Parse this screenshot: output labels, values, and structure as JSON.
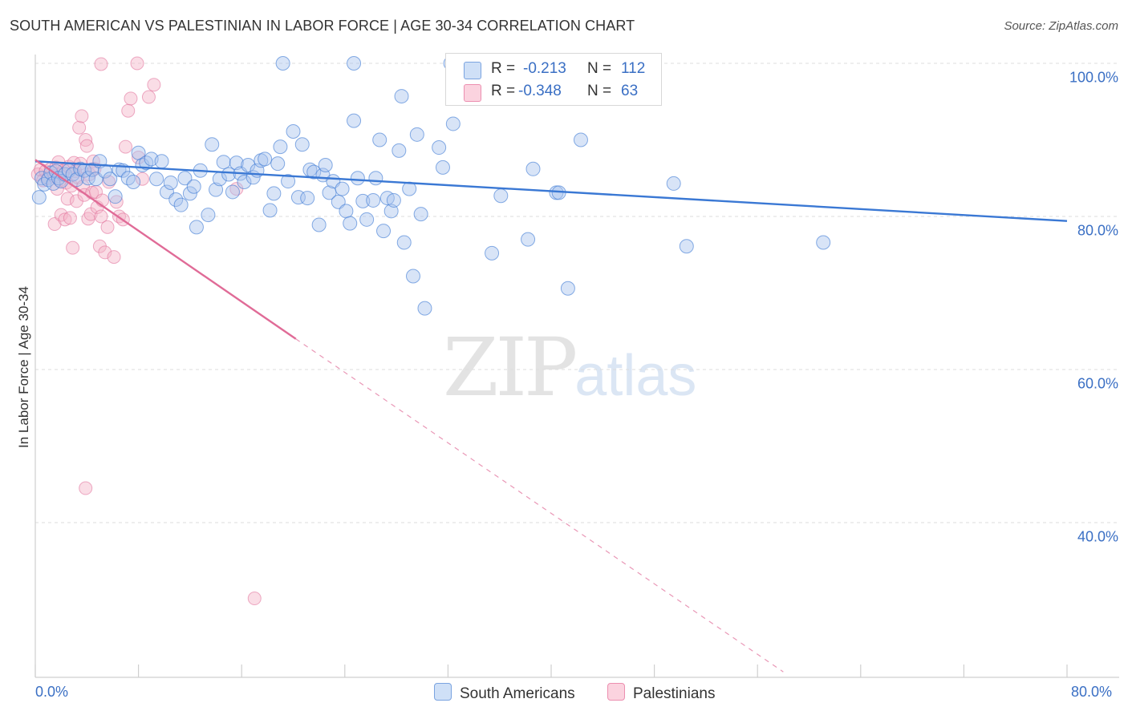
{
  "title": "SOUTH AMERICAN VS PALESTINIAN IN LABOR FORCE | AGE 30-34 CORRELATION CHART",
  "source": "Source: ZipAtlas.com",
  "watermark": {
    "zip": "ZIP",
    "atlas": "atlas"
  },
  "legend": {
    "rows": [
      {
        "r_label": "R =",
        "r_value": "-0.213",
        "n_label": "N =",
        "n_value": "112",
        "color": "#a9c4ee"
      },
      {
        "r_label": "R =",
        "r_value": "-0.348",
        "n_label": "N =",
        "n_value": "63",
        "color": "#f5b3c8"
      }
    ]
  },
  "bottom_legend": [
    "South Americans",
    "Palestinians"
  ],
  "colors": {
    "blue": "#3a78d4",
    "blue_fill": "#a9c4ee",
    "pink": "#e06b97",
    "pink_fill": "#f5b3c8",
    "tick_text": "#3a6fc4"
  },
  "chart_data": {
    "type": "scatter",
    "xlabel": "",
    "ylabel": "In Labor Force | Age 30-34",
    "x_tick_labels": [
      "0.0%",
      "80.0%"
    ],
    "y_tick_labels": [
      "100.0%",
      "80.0%",
      "60.0%",
      "40.0%"
    ],
    "xlim": [
      0,
      80
    ],
    "ylim": [
      20,
      102
    ],
    "grid": true,
    "series": [
      {
        "name": "South Americans",
        "trend": {
          "x": [
            0,
            80
          ],
          "y": [
            87.2,
            79.4
          ]
        },
        "points": [
          [
            0.5,
            85.0
          ],
          [
            0.7,
            84.2
          ],
          [
            1.0,
            84.8
          ],
          [
            1.2,
            85.7
          ],
          [
            1.4,
            84.3
          ],
          [
            1.6,
            85.9
          ],
          [
            1.8,
            85.0
          ],
          [
            2.0,
            84.6
          ],
          [
            2.3,
            85.5
          ],
          [
            2.6,
            86.0
          ],
          [
            2.9,
            85.5
          ],
          [
            3.2,
            84.8
          ],
          [
            3.5,
            86.2
          ],
          [
            3.8,
            86.0
          ],
          [
            4.1,
            85.0
          ],
          [
            4.4,
            86.1
          ],
          [
            4.7,
            84.9
          ],
          [
            5.0,
            87.2
          ],
          [
            5.4,
            85.9
          ],
          [
            5.8,
            84.9
          ],
          [
            6.2,
            82.6
          ],
          [
            6.5,
            86.1
          ],
          [
            6.8,
            86.0
          ],
          [
            7.2,
            85.0
          ],
          [
            7.6,
            84.5
          ],
          [
            8.0,
            88.3
          ],
          [
            8.3,
            86.7
          ],
          [
            8.6,
            87.0
          ],
          [
            9.0,
            87.5
          ],
          [
            9.4,
            84.9
          ],
          [
            9.8,
            87.2
          ],
          [
            10.2,
            83.2
          ],
          [
            10.5,
            84.4
          ],
          [
            10.9,
            82.2
          ],
          [
            11.3,
            81.5
          ],
          [
            11.6,
            85.0
          ],
          [
            12.0,
            83.0
          ],
          [
            12.3,
            83.9
          ],
          [
            12.5,
            78.6
          ],
          [
            12.8,
            86.0
          ],
          [
            13.4,
            80.2
          ],
          [
            13.7,
            89.4
          ],
          [
            14.0,
            83.5
          ],
          [
            14.3,
            84.9
          ],
          [
            14.6,
            87.1
          ],
          [
            15.0,
            85.5
          ],
          [
            15.3,
            83.2
          ],
          [
            15.6,
            87.0
          ],
          [
            15.9,
            85.6
          ],
          [
            16.2,
            84.5
          ],
          [
            16.5,
            86.7
          ],
          [
            16.9,
            85.1
          ],
          [
            17.2,
            86.0
          ],
          [
            17.5,
            87.3
          ],
          [
            17.8,
            87.5
          ],
          [
            18.2,
            80.8
          ],
          [
            18.5,
            83.0
          ],
          [
            18.8,
            86.9
          ],
          [
            19.0,
            89.1
          ],
          [
            19.6,
            84.6
          ],
          [
            20.0,
            91.1
          ],
          [
            20.4,
            82.5
          ],
          [
            20.7,
            89.4
          ],
          [
            21.1,
            82.4
          ],
          [
            21.3,
            86.1
          ],
          [
            21.6,
            85.8
          ],
          [
            22.0,
            78.9
          ],
          [
            22.3,
            85.4
          ],
          [
            22.5,
            86.7
          ],
          [
            22.8,
            83.1
          ],
          [
            23.1,
            84.6
          ],
          [
            23.5,
            81.9
          ],
          [
            23.8,
            83.6
          ],
          [
            24.1,
            80.7
          ],
          [
            24.4,
            79.1
          ],
          [
            24.7,
            92.5
          ],
          [
            25.0,
            85.0
          ],
          [
            25.4,
            82.0
          ],
          [
            25.7,
            79.6
          ],
          [
            26.2,
            82.1
          ],
          [
            26.4,
            85.0
          ],
          [
            26.7,
            90.0
          ],
          [
            27.0,
            78.1
          ],
          [
            27.3,
            82.4
          ],
          [
            27.6,
            80.7
          ],
          [
            27.8,
            82.1
          ],
          [
            28.2,
            88.6
          ],
          [
            28.4,
            95.7
          ],
          [
            28.6,
            76.6
          ],
          [
            29.0,
            83.6
          ],
          [
            29.3,
            72.2
          ],
          [
            29.6,
            90.7
          ],
          [
            29.9,
            80.3
          ],
          [
            30.2,
            68.0
          ],
          [
            31.3,
            89.0
          ],
          [
            31.6,
            86.4
          ],
          [
            32.4,
            92.1
          ],
          [
            35.4,
            75.2
          ],
          [
            36.1,
            82.7
          ],
          [
            38.2,
            77.0
          ],
          [
            38.6,
            86.2
          ],
          [
            40.4,
            83.1
          ],
          [
            40.6,
            83.1
          ],
          [
            41.3,
            70.6
          ],
          [
            42.3,
            90.0
          ],
          [
            49.5,
            84.3
          ],
          [
            50.5,
            76.1
          ],
          [
            61.1,
            76.6
          ],
          [
            19.2,
            100.0
          ],
          [
            24.7,
            100.0
          ],
          [
            32.2,
            100.0
          ],
          [
            0.3,
            82.5
          ]
        ]
      },
      {
        "name": "Palestinians",
        "trend": {
          "x": [
            0,
            20.2
          ],
          "y": [
            87.4,
            64.0
          ]
        },
        "trend_dashed": {
          "x": [
            20.2,
            58.0
          ],
          "y": [
            64.0,
            20.5
          ]
        },
        "points": [
          [
            0.2,
            85.5
          ],
          [
            0.4,
            86.1
          ],
          [
            0.6,
            84.7
          ],
          [
            0.8,
            85.9
          ],
          [
            1.0,
            85.0
          ],
          [
            1.2,
            86.2
          ],
          [
            1.4,
            85.3
          ],
          [
            1.5,
            79.0
          ],
          [
            1.6,
            86.4
          ],
          [
            1.7,
            83.6
          ],
          [
            1.8,
            87.1
          ],
          [
            1.9,
            84.7
          ],
          [
            2.0,
            80.2
          ],
          [
            2.1,
            85.4
          ],
          [
            2.2,
            86.0
          ],
          [
            2.3,
            79.6
          ],
          [
            2.4,
            84.4
          ],
          [
            2.5,
            82.3
          ],
          [
            2.6,
            86.5
          ],
          [
            2.7,
            79.8
          ],
          [
            2.8,
            84.0
          ],
          [
            2.9,
            75.9
          ],
          [
            3.0,
            87.0
          ],
          [
            3.1,
            85.9
          ],
          [
            3.2,
            82.0
          ],
          [
            3.3,
            85.1
          ],
          [
            3.4,
            91.6
          ],
          [
            3.5,
            86.9
          ],
          [
            3.6,
            93.1
          ],
          [
            3.7,
            83.9
          ],
          [
            3.8,
            82.8
          ],
          [
            3.9,
            90.0
          ],
          [
            4.0,
            89.2
          ],
          [
            4.1,
            79.7
          ],
          [
            4.2,
            85.5
          ],
          [
            4.3,
            80.3
          ],
          [
            4.4,
            83.1
          ],
          [
            4.5,
            87.2
          ],
          [
            4.6,
            86.2
          ],
          [
            4.7,
            83.2
          ],
          [
            4.8,
            81.2
          ],
          [
            5.0,
            76.1
          ],
          [
            5.1,
            80.0
          ],
          [
            5.2,
            82.1
          ],
          [
            5.4,
            75.3
          ],
          [
            5.6,
            78.6
          ],
          [
            5.7,
            84.5
          ],
          [
            6.1,
            74.7
          ],
          [
            6.3,
            81.9
          ],
          [
            6.5,
            80.0
          ],
          [
            6.8,
            79.6
          ],
          [
            7.0,
            89.1
          ],
          [
            7.2,
            93.8
          ],
          [
            7.4,
            95.4
          ],
          [
            8.0,
            87.7
          ],
          [
            8.3,
            84.9
          ],
          [
            8.8,
            95.6
          ],
          [
            9.2,
            97.2
          ],
          [
            5.1,
            99.9
          ],
          [
            7.9,
            100.0
          ],
          [
            3.9,
            44.5
          ],
          [
            17.0,
            30.1
          ],
          [
            15.6,
            83.6
          ]
        ]
      }
    ]
  }
}
